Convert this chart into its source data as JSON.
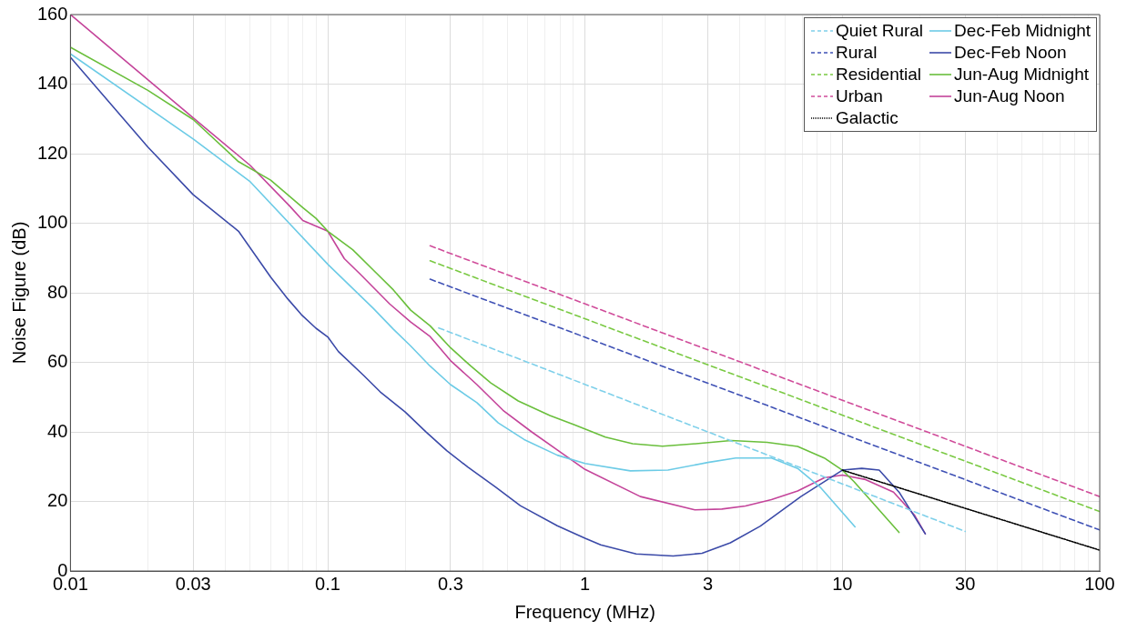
{
  "chart_data": {
    "type": "line",
    "xlabel": "Frequency (MHz)",
    "ylabel": "Noise Figure (dB)",
    "log": "x",
    "grid": true,
    "legend": "top right",
    "xlim": [
      0.01,
      100
    ],
    "ylim": [
      0,
      160
    ],
    "xticks": [
      0.01,
      {
        "value": 0.02,
        "label": null
      },
      0.03,
      {
        "value": 0.04,
        "label": null
      },
      {
        "value": 0.05,
        "label": null
      },
      {
        "value": 0.06,
        "label": null
      },
      {
        "value": 0.07,
        "label": null
      },
      {
        "value": 0.08,
        "label": null
      },
      {
        "value": 0.09,
        "label": null
      },
      0.1,
      {
        "value": 0.2,
        "label": null
      },
      0.3,
      {
        "value": 0.4,
        "label": null
      },
      {
        "value": 0.5,
        "label": null
      },
      {
        "value": 0.6,
        "label": null
      },
      {
        "value": 0.7,
        "label": null
      },
      {
        "value": 0.8,
        "label": null
      },
      {
        "value": 0.9,
        "label": null
      },
      1,
      {
        "value": 2,
        "label": null
      },
      3,
      {
        "value": 4,
        "label": null
      },
      {
        "value": 5,
        "label": null
      },
      {
        "value": 6,
        "label": null
      },
      {
        "value": 7,
        "label": null
      },
      {
        "value": 8,
        "label": null
      },
      {
        "value": 9,
        "label": null
      },
      10,
      {
        "value": 20,
        "label": null
      },
      30,
      {
        "value": 40,
        "label": null
      },
      {
        "value": 50,
        "label": null
      },
      {
        "value": 60,
        "label": null
      },
      {
        "value": 70,
        "label": null
      },
      {
        "value": 80,
        "label": null
      },
      {
        "value": 90,
        "label": null
      },
      100
    ],
    "yticks": [
      0,
      20,
      40,
      60,
      80,
      100,
      120,
      140,
      160
    ],
    "series": [
      {
        "name": "Quiet Rural",
        "color": "#7fd0ea",
        "line_style": "dashed",
        "x": [
          0.27,
          30
        ],
        "values": [
          69.9,
          11.4
        ]
      },
      {
        "name": "Rural",
        "color": "#3f51b5",
        "line_style": "dashed",
        "x": [
          0.25,
          100
        ],
        "values": [
          83.9,
          11.8
        ]
      },
      {
        "name": "Residential",
        "color": "#7ac943",
        "line_style": "dashed",
        "x": [
          0.25,
          100
        ],
        "values": [
          89.2,
          17.1
        ]
      },
      {
        "name": "Urban",
        "color": "#d04c9a",
        "line_style": "dashed",
        "x": [
          0.25,
          100
        ],
        "values": [
          93.5,
          21.4
        ]
      },
      {
        "name": "Galactic",
        "color": "#000000",
        "line_style": "dotted",
        "x": [
          10,
          100
        ],
        "values": [
          29,
          6
        ]
      },
      {
        "name": "Dec-Feb Midnight",
        "color": "#6ccbe6",
        "line_style": "solid",
        "x": [
          0.01,
          0.03,
          0.05,
          0.1,
          0.15,
          0.18,
          0.21,
          0.25,
          0.3,
          0.38,
          0.46,
          0.58,
          0.78,
          1,
          1.5,
          2.1,
          3,
          3.85,
          5.3,
          6.7,
          8.2,
          9.8,
          11.2
        ],
        "values": [
          148.7,
          124.2,
          111.9,
          88.2,
          75.6,
          69.5,
          64.7,
          58.9,
          53.6,
          48.4,
          42.6,
          37.8,
          33.3,
          30.9,
          28.8,
          29,
          31.2,
          32.5,
          32.5,
          29.5,
          24.1,
          17.6,
          12.7
        ]
      },
      {
        "name": "Dec-Feb Noon",
        "color": "#3b4aa8",
        "line_style": "solid",
        "x": [
          0.01,
          0.02,
          0.03,
          0.045,
          0.06,
          0.07,
          0.079,
          0.09,
          0.1,
          0.11,
          0.138,
          0.16,
          0.2,
          0.24,
          0.29,
          0.35,
          0.45,
          0.56,
          0.78,
          1,
          1.15,
          1.58,
          2.2,
          2.85,
          3.67,
          4.8,
          6.9,
          10,
          11.9,
          13.9,
          16.6,
          21
        ],
        "values": [
          147.7,
          121.9,
          108.2,
          97.7,
          84.5,
          78.2,
          73.7,
          69.8,
          67.3,
          63.1,
          56.2,
          51.5,
          45.7,
          40.1,
          34.6,
          29.9,
          24.1,
          18.8,
          13,
          9.4,
          7.5,
          4.9,
          4.3,
          5.1,
          8.1,
          12.9,
          21.4,
          29,
          29.5,
          29,
          22.7,
          10.7
        ]
      },
      {
        "name": "Jun-Aug Midnight",
        "color": "#6abf3c",
        "line_style": "solid",
        "x": [
          0.01,
          0.02,
          0.03,
          0.045,
          0.06,
          0.08,
          0.09,
          0.1,
          0.125,
          0.15,
          0.18,
          0.21,
          0.25,
          0.3,
          0.36,
          0.43,
          0.55,
          0.73,
          0.91,
          1.2,
          1.53,
          2,
          2.7,
          3.7,
          5.1,
          6.7,
          8.5,
          10,
          11.1,
          16.6
        ],
        "values": [
          150.6,
          138.2,
          129.8,
          117.7,
          112.4,
          104.5,
          101.4,
          97.7,
          92.4,
          86.6,
          80.8,
          75,
          70.5,
          64.2,
          58.9,
          54.1,
          48.9,
          44.7,
          42,
          38.5,
          36.6,
          35.9,
          36.6,
          37.5,
          37,
          35.8,
          32.5,
          29,
          25.7,
          11.1
        ]
      },
      {
        "name": "Jun-Aug Noon",
        "color": "#c4449a",
        "line_style": "solid",
        "x": [
          0.01,
          0.03,
          0.05,
          0.071,
          0.08,
          0.1,
          0.116,
          0.134,
          0.174,
          0.21,
          0.25,
          0.3,
          0.38,
          0.48,
          0.62,
          0.78,
          1,
          1.64,
          2.67,
          3.4,
          4.2,
          5.3,
          6.7,
          8.5,
          10,
          12.3,
          15.8,
          19.1,
          21
        ],
        "values": [
          160,
          130.3,
          116.6,
          105,
          100.8,
          97.7,
          89.8,
          85.3,
          76.8,
          71.6,
          67.4,
          60.5,
          53.6,
          46.2,
          40,
          34.8,
          29.2,
          21.4,
          17.6,
          17.8,
          18.7,
          20.5,
          23,
          26.8,
          27.6,
          26.3,
          22.7,
          16,
          10.7
        ]
      }
    ]
  }
}
